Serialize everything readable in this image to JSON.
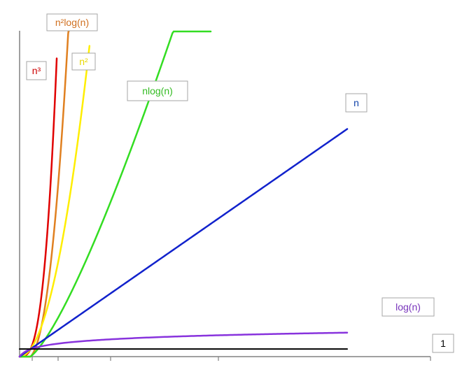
{
  "chart_data": {
    "type": "line",
    "title": "",
    "xlabel": "",
    "ylabel": "",
    "grid": false,
    "legend": "none",
    "xlim": [
      0,
      30
    ],
    "ylim": [
      0,
      50
    ],
    "series": [
      {
        "name": "n³",
        "color": "#e00000",
        "fn": "n^3",
        "x": [
          0,
          1,
          2,
          3,
          3.4
        ],
        "y": [
          0,
          1,
          8,
          27,
          39.3
        ]
      },
      {
        "name": "n²log(n)",
        "color": "#e08020",
        "fn": "n^2*log(n)",
        "x": [
          0,
          1,
          2,
          3,
          4,
          4.5
        ],
        "y": [
          0,
          0.1,
          3,
          10,
          21,
          30
        ]
      },
      {
        "name": "n²",
        "color": "#ffee00",
        "fn": "n^2",
        "x": [
          0,
          1,
          2,
          4,
          6,
          6.4
        ],
        "y": [
          0,
          1,
          4,
          16,
          36,
          41
        ]
      },
      {
        "name": "nlog(n)",
        "color": "#33dd22",
        "fn": "n*log(n)",
        "x": [
          0,
          5,
          10,
          15,
          17.5
        ],
        "y": [
          0,
          6,
          16,
          27,
          33
        ]
      },
      {
        "name": "n",
        "color": "#1122cc",
        "fn": "n",
        "x": [
          0,
          10,
          20,
          30
        ],
        "y": [
          0,
          10,
          20,
          30
        ]
      },
      {
        "name": "log(n)",
        "color": "#8833dd",
        "fn": "log(n)",
        "x": [
          0,
          1,
          5,
          10,
          20,
          30
        ],
        "y": [
          0,
          1.2,
          2.2,
          2.6,
          2.9,
          3.2
        ]
      },
      {
        "name": "1",
        "color": "#000000",
        "fn": "1",
        "x": [
          0,
          30
        ],
        "y": [
          1,
          1
        ]
      }
    ],
    "label_colors": {
      "n³": "#cc0000",
      "n²log(n)": "#d07020",
      "n²": "#e8d800",
      "nlog(n)": "#33bb22",
      "n": "#1144aa",
      "log(n)": "#7733bb",
      "1": "#000000"
    }
  }
}
